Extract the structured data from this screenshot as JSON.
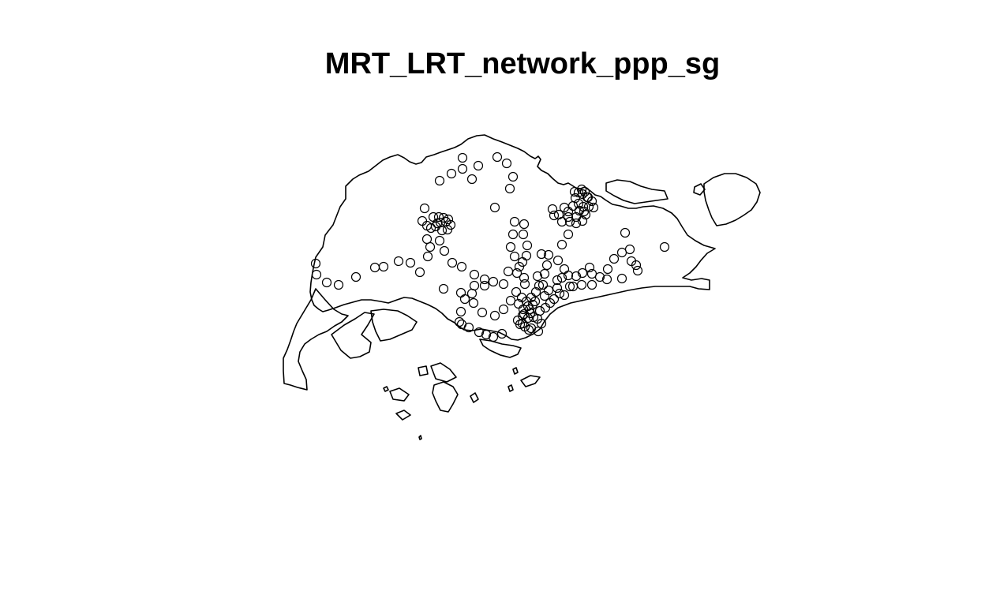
{
  "plot": {
    "title": "MRT_LRT_network_ppp_sg"
  },
  "layers": {
    "boundary": {
      "name": "Singapore coastline outline",
      "stroke_color": "#000000",
      "fill": "none"
    },
    "points": {
      "name": "MRT/LRT station point pattern",
      "marker": "open circle",
      "stroke_color": "#000000",
      "count": 182
    }
  },
  "colors": {
    "background": "#ffffff",
    "foreground": "#000000"
  }
}
